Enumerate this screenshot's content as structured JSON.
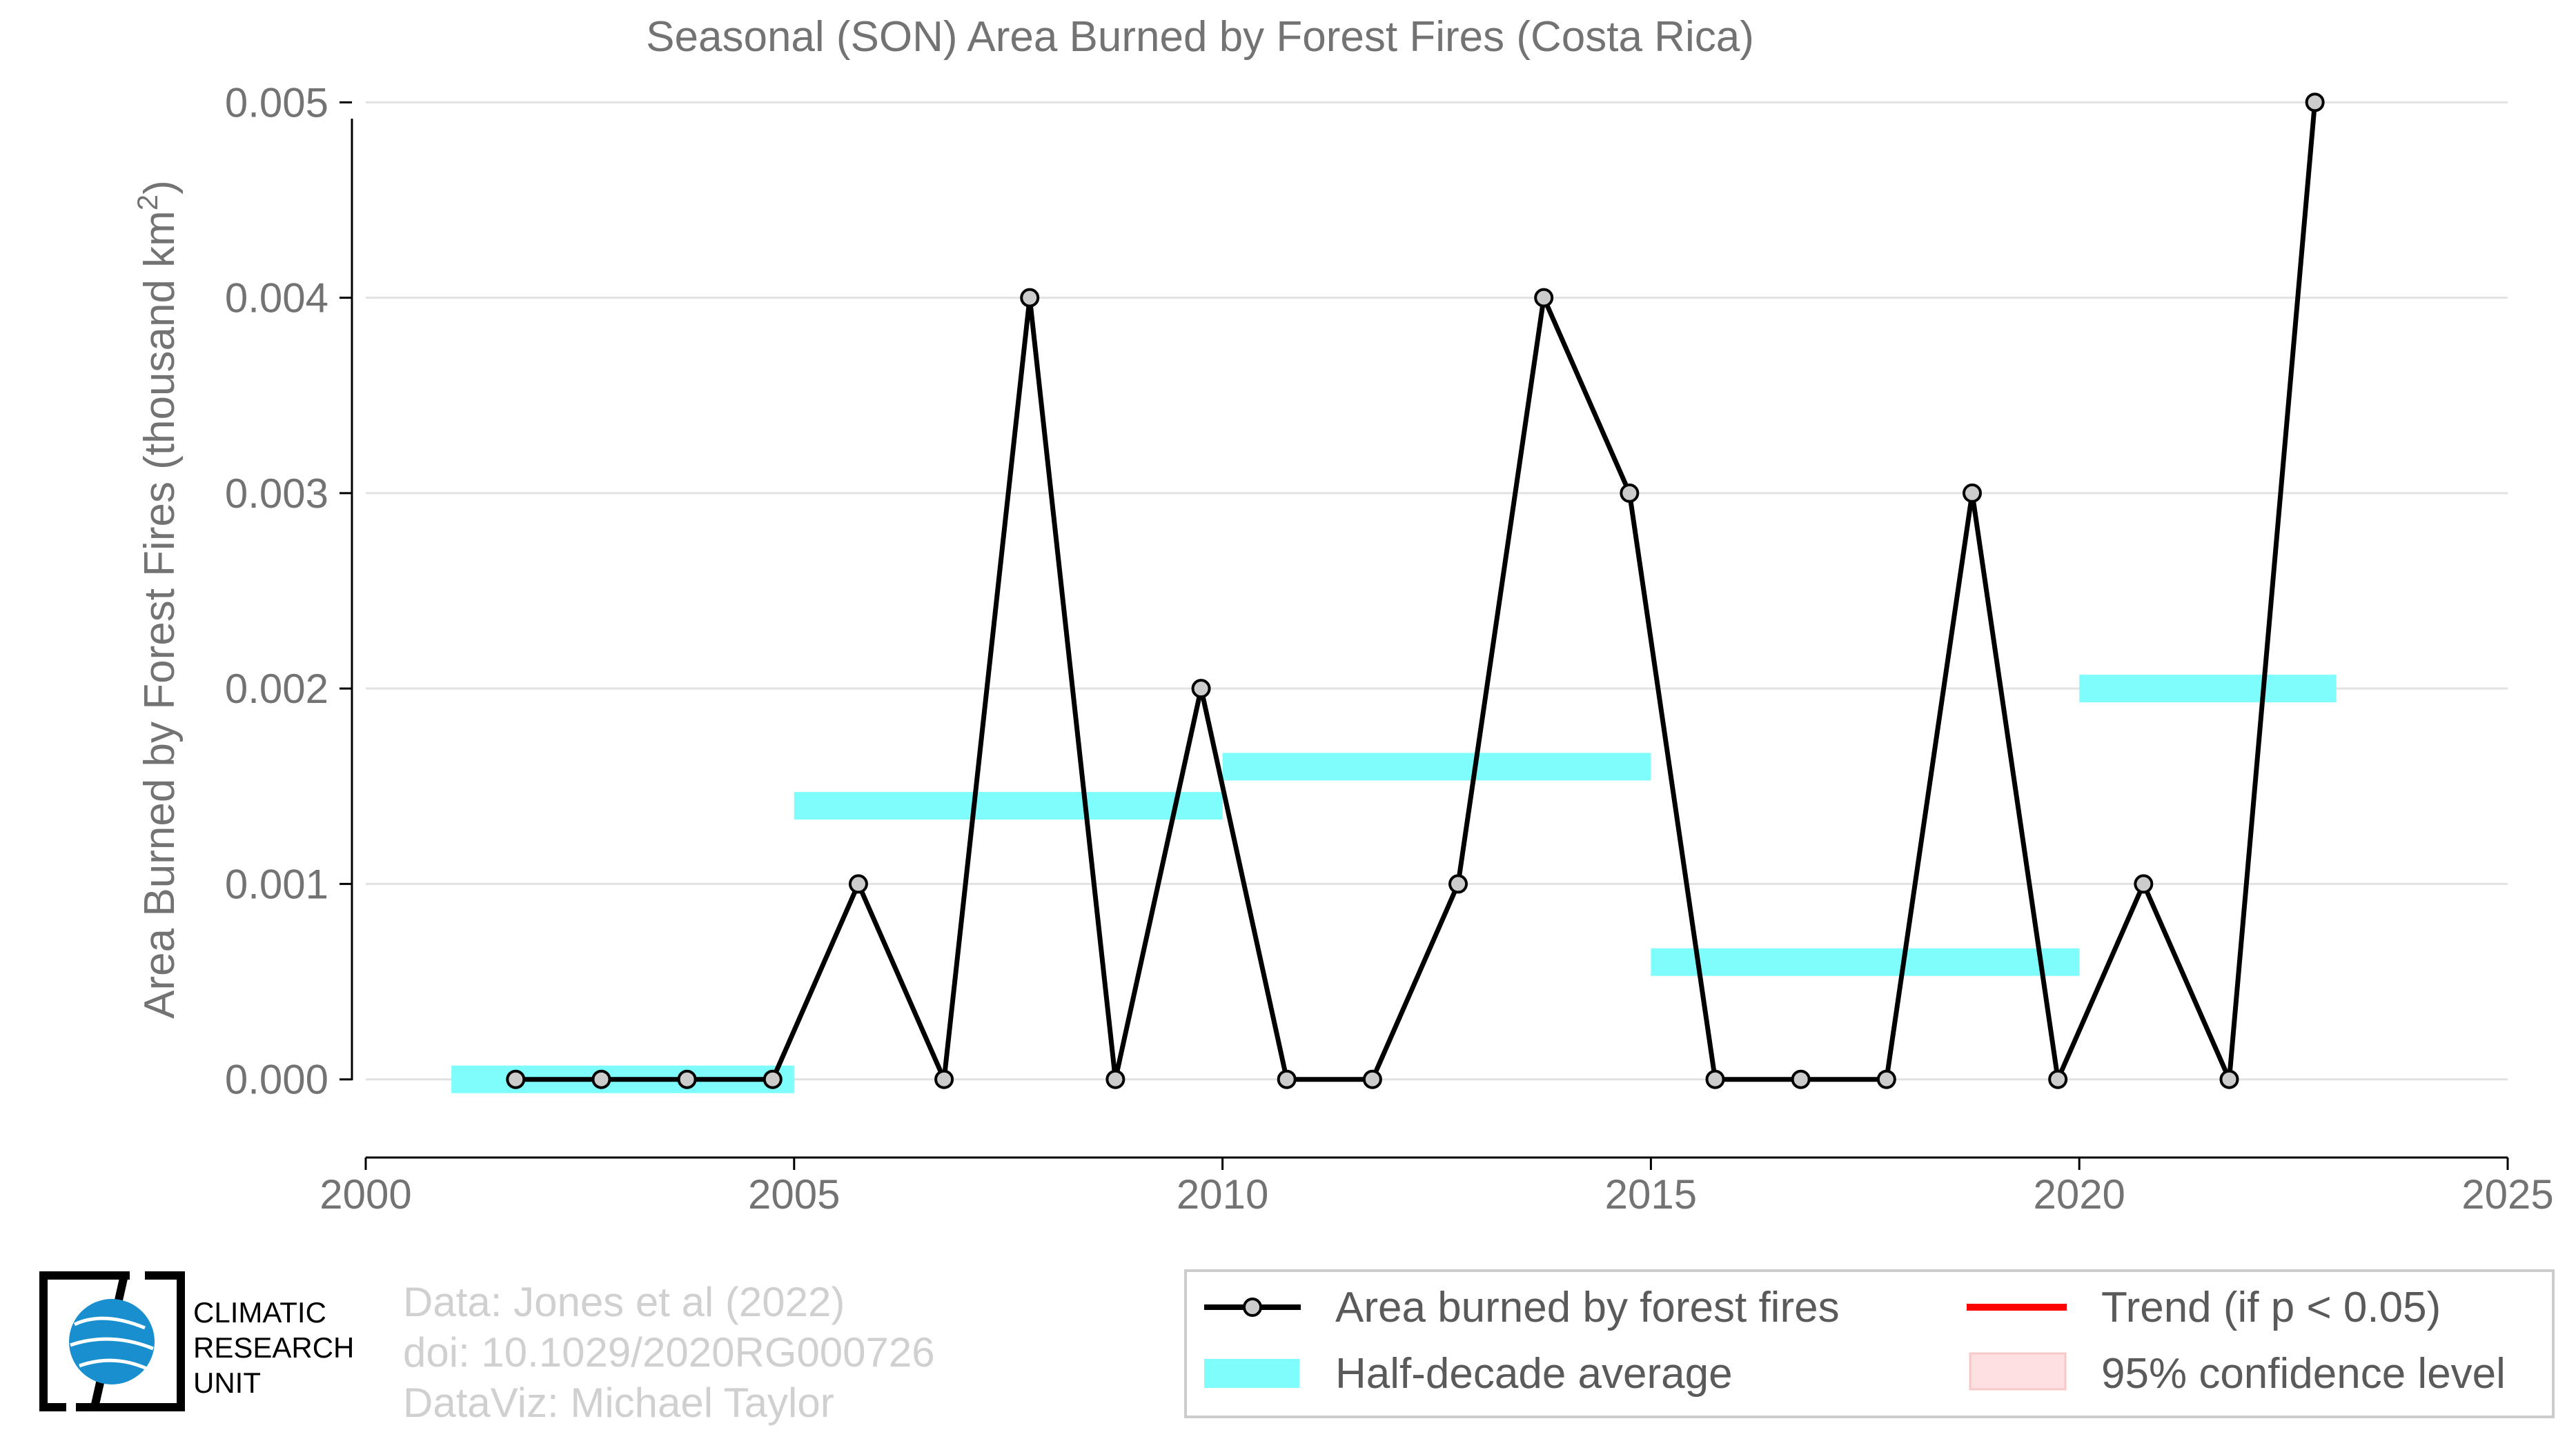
{
  "chart_data": {
    "type": "line",
    "title": "Seasonal (SON) Area Burned by Forest Fires (Costa Rica)",
    "xlabel": "",
    "ylabel_parts": [
      "Area Burned by Forest Fires (thousand km",
      "2",
      ")"
    ],
    "xlim": [
      2000,
      2025
    ],
    "ylim": [
      -0.0004,
      0.0051
    ],
    "x_ticks": [
      2000,
      2005,
      2010,
      2015,
      2020,
      2025
    ],
    "y_ticks": [
      0,
      0.001,
      0.002,
      0.003,
      0.004,
      0.005
    ],
    "y_tick_labels": [
      "0.000",
      "0.001",
      "0.002",
      "0.003",
      "0.004",
      "0.005"
    ],
    "grid": true,
    "series": [
      {
        "name": "Area burned by forest fires",
        "color": "#000000",
        "marker_fill": "#cccccc",
        "x": [
          2001.75,
          2002.75,
          2003.75,
          2004.75,
          2005.75,
          2006.75,
          2007.75,
          2008.75,
          2009.75,
          2010.75,
          2011.75,
          2012.75,
          2013.75,
          2014.75,
          2015.75,
          2016.75,
          2017.75,
          2018.75,
          2019.75,
          2020.75,
          2021.75,
          2022.75
        ],
        "y": [
          0,
          0,
          0,
          0,
          0.001,
          0,
          0.004,
          0,
          0.002,
          0,
          0,
          0.001,
          0.004,
          0.003,
          0,
          0,
          0,
          0.003,
          0,
          0.001,
          0,
          0.005
        ]
      }
    ],
    "half_decade_averages": {
      "name": "Half-decade average",
      "color": "#7ffcfc",
      "segments": [
        {
          "x_start": 2001,
          "x_end": 2005,
          "value": 0
        },
        {
          "x_start": 2005,
          "x_end": 2010,
          "value": 0.0014
        },
        {
          "x_start": 2010,
          "x_end": 2015,
          "value": 0.0016
        },
        {
          "x_start": 2015,
          "x_end": 2020,
          "value": 0.0006
        },
        {
          "x_start": 2020,
          "x_end": 2023,
          "value": 0.002
        }
      ]
    },
    "legend": {
      "placement": "bottom-right",
      "entries": [
        {
          "label": "Area burned by forest fires",
          "kind": "line-marker",
          "color": "#000000"
        },
        {
          "label": "Trend (if p < 0.05)",
          "kind": "line",
          "color": "#ff0000"
        },
        {
          "label": "Half-decade average",
          "kind": "patch",
          "color": "#7ffcfc"
        },
        {
          "label": "95% confidence level",
          "kind": "patch",
          "color": "#ffe0e0"
        }
      ]
    }
  },
  "credits": {
    "lines": [
      "Data: Jones et al (2022)",
      "doi: 10.1029/2020RG000726",
      "DataViz: Michael Taylor"
    ]
  },
  "logo": {
    "lines": [
      "CLIMATIC",
      "RESEARCH",
      "UNIT"
    ],
    "globe_color": "#1a8fd0"
  }
}
